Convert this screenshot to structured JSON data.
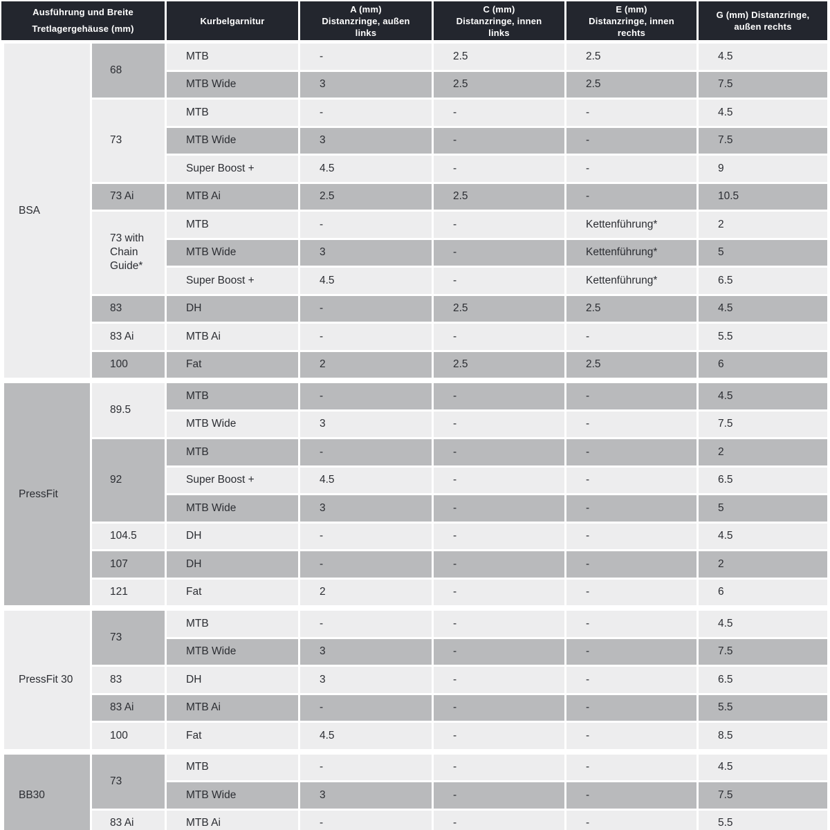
{
  "colors": {
    "header_bg": "#23262e",
    "header_text": "#ffffff",
    "row_light": "#ededee",
    "row_dark": "#b9babc",
    "text": "#2b2d32",
    "gap": "#ffffff"
  },
  "header": {
    "columns": [
      {
        "id": "bb_shell",
        "label": "Ausführung und Breite\nTretlagergehäuse (mm)"
      },
      {
        "id": "crankset",
        "label": "Kurbelgarnitur"
      },
      {
        "id": "a",
        "label": "A (mm)\nDistanzringe, außen\nlinks"
      },
      {
        "id": "c",
        "label": "C (mm)\nDistanzringe, innen\nlinks"
      },
      {
        "id": "e",
        "label": "E (mm)\nDistanzringe, innen\nrechts"
      },
      {
        "id": "g",
        "label": "G (mm) Distanzringe,\naußen rechts"
      }
    ]
  },
  "sections": [
    {
      "name": "BSA",
      "shade": "light",
      "groups": [
        {
          "width": "68",
          "shade": "dark",
          "rows": [
            {
              "crank": "MTB",
              "shade": "light",
              "a": "-",
              "c": "2.5",
              "e": "2.5",
              "g": "4.5"
            },
            {
              "crank": "MTB Wide",
              "shade": "dark",
              "a": "3",
              "c": "2.5",
              "e": "2.5",
              "g": "7.5"
            }
          ]
        },
        {
          "width": "73",
          "shade": "light",
          "rows": [
            {
              "crank": "MTB",
              "shade": "light",
              "a": "-",
              "c": "-",
              "e": "-",
              "g": "4.5"
            },
            {
              "crank": "MTB Wide",
              "shade": "dark",
              "a": "3",
              "c": "-",
              "e": "-",
              "g": "7.5"
            },
            {
              "crank": "Super Boost +",
              "shade": "light",
              "a": "4.5",
              "c": "-",
              "e": "-",
              "g": "9"
            }
          ]
        },
        {
          "width": "73 Ai",
          "shade": "dark",
          "rows": [
            {
              "crank": "MTB Ai",
              "shade": "dark",
              "a": "2.5",
              "c": "2.5",
              "e": "-",
              "g": "10.5"
            }
          ]
        },
        {
          "width": "73 with\nChain\nGuide*",
          "shade": "light",
          "rows": [
            {
              "crank": "MTB",
              "shade": "light",
              "a": "-",
              "c": "-",
              "e": "Kettenführung*",
              "g": "2"
            },
            {
              "crank": "MTB Wide",
              "shade": "dark",
              "a": "3",
              "c": "-",
              "e": "Kettenführung*",
              "g": "5"
            },
            {
              "crank": "Super Boost +",
              "shade": "light",
              "a": "4.5",
              "c": "-",
              "e": "Kettenführung*",
              "g": "6.5"
            }
          ]
        },
        {
          "width": "83",
          "shade": "dark",
          "rows": [
            {
              "crank": "DH",
              "shade": "dark",
              "a": "-",
              "c": "2.5",
              "e": "2.5",
              "g": "4.5"
            }
          ]
        },
        {
          "width": "83 Ai",
          "shade": "light",
          "rows": [
            {
              "crank": "MTB Ai",
              "shade": "light",
              "a": "-",
              "c": "-",
              "e": "-",
              "g": "5.5"
            }
          ]
        },
        {
          "width": "100",
          "shade": "dark",
          "rows": [
            {
              "crank": "Fat",
              "shade": "dark",
              "a": "2",
              "c": "2.5",
              "e": "2.5",
              "g": "6"
            }
          ]
        }
      ]
    },
    {
      "name": "PressFit",
      "shade": "dark",
      "groups": [
        {
          "width": "89.5",
          "shade": "light",
          "rows": [
            {
              "crank": "MTB",
              "shade": "dark",
              "a": "-",
              "c": "-",
              "e": "-",
              "g": "4.5"
            },
            {
              "crank": "MTB  Wide",
              "shade": "light",
              "a": "3",
              "c": "-",
              "e": "-",
              "g": "7.5"
            }
          ]
        },
        {
          "width": "92",
          "shade": "dark",
          "rows": [
            {
              "crank": "MTB",
              "shade": "dark",
              "a": "-",
              "c": "-",
              "e": "-",
              "g": "2"
            },
            {
              "crank": "Super Boost +",
              "shade": "light",
              "a": "4.5",
              "c": "-",
              "e": "-",
              "g": "6.5"
            },
            {
              "crank": "MTB Wide",
              "shade": "dark",
              "a": "3",
              "c": "-",
              "e": "-",
              "g": "5"
            }
          ]
        },
        {
          "width": "104.5",
          "shade": "light",
          "rows": [
            {
              "crank": "DH",
              "shade": "light",
              "a": "-",
              "c": "-",
              "e": "-",
              "g": "4.5"
            }
          ]
        },
        {
          "width": "107",
          "shade": "dark",
          "rows": [
            {
              "crank": "DH",
              "shade": "dark",
              "a": "-",
              "c": "-",
              "e": "-",
              "g": "2"
            }
          ]
        },
        {
          "width": "121",
          "shade": "light",
          "rows": [
            {
              "crank": "Fat",
              "shade": "light",
              "a": "2",
              "c": "-",
              "e": "-",
              "g": "6"
            }
          ]
        }
      ]
    },
    {
      "name": "PressFit 30",
      "shade": "light",
      "groups": [
        {
          "width": "73",
          "shade": "dark",
          "rows": [
            {
              "crank": "MTB",
              "shade": "light",
              "a": "-",
              "c": "-",
              "e": "-",
              "g": "4.5"
            },
            {
              "crank": "MTB  Wide",
              "shade": "dark",
              "a": "3",
              "c": "-",
              "e": "-",
              "g": "7.5"
            }
          ]
        },
        {
          "width": "83",
          "shade": "light",
          "rows": [
            {
              "crank": "DH",
              "shade": "light",
              "a": "3",
              "c": "-",
              "e": "-",
              "g": "6.5"
            }
          ]
        },
        {
          "width": "83 Ai",
          "shade": "dark",
          "rows": [
            {
              "crank": "MTB Ai",
              "shade": "dark",
              "a": "-",
              "c": "-",
              "e": "-",
              "g": "5.5"
            }
          ]
        },
        {
          "width": "100",
          "shade": "light",
          "rows": [
            {
              "crank": "Fat",
              "shade": "light",
              "a": "4.5",
              "c": "-",
              "e": "-",
              "g": "8.5"
            }
          ]
        }
      ]
    },
    {
      "name": "BB30",
      "shade": "dark",
      "groups": [
        {
          "width": "73",
          "shade": "dark",
          "rows": [
            {
              "crank": "MTB",
              "shade": "light",
              "a": "-",
              "c": "-",
              "e": "-",
              "g": "4.5"
            },
            {
              "crank": "MTB Wide",
              "shade": "dark",
              "a": "3",
              "c": "-",
              "e": "-",
              "g": "7.5"
            }
          ]
        },
        {
          "width": "83 Ai",
          "shade": "light",
          "rows": [
            {
              "crank": "MTB Ai",
              "shade": "light",
              "a": "-",
              "c": "-",
              "e": "-",
              "g": "5.5"
            }
          ]
        }
      ]
    }
  ]
}
